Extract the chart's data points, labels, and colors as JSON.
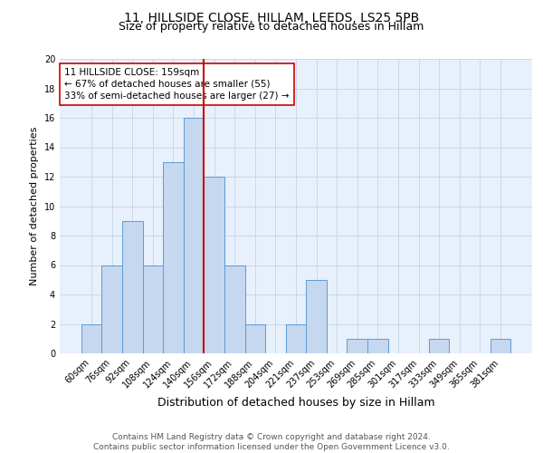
{
  "title1": "11, HILLSIDE CLOSE, HILLAM, LEEDS, LS25 5PB",
  "title2": "Size of property relative to detached houses in Hillam",
  "xlabel": "Distribution of detached houses by size in Hillam",
  "ylabel": "Number of detached properties",
  "categories": [
    "60sqm",
    "76sqm",
    "92sqm",
    "108sqm",
    "124sqm",
    "140sqm",
    "156sqm",
    "172sqm",
    "188sqm",
    "204sqm",
    "221sqm",
    "237sqm",
    "253sqm",
    "269sqm",
    "285sqm",
    "301sqm",
    "317sqm",
    "333sqm",
    "349sqm",
    "365sqm",
    "381sqm"
  ],
  "values": [
    2,
    6,
    9,
    6,
    13,
    16,
    12,
    6,
    2,
    0,
    2,
    5,
    0,
    1,
    1,
    0,
    0,
    1,
    0,
    0,
    1
  ],
  "bar_color": "#c5d8f0",
  "bar_edge_color": "#5b9bd5",
  "subject_line_color": "#cc0000",
  "annotation_text": "11 HILLSIDE CLOSE: 159sqm\n← 67% of detached houses are smaller (55)\n33% of semi-detached houses are larger (27) →",
  "annotation_box_color": "white",
  "annotation_box_edge_color": "#cc0000",
  "ylim": [
    0,
    20
  ],
  "yticks": [
    0,
    2,
    4,
    6,
    8,
    10,
    12,
    14,
    16,
    18,
    20
  ],
  "grid_color": "#c8d8ec",
  "background_color": "#e8f0fb",
  "footer_text": "Contains HM Land Registry data © Crown copyright and database right 2024.\nContains public sector information licensed under the Open Government Licence v3.0.",
  "title1_fontsize": 10,
  "title2_fontsize": 9,
  "xlabel_fontsize": 9,
  "ylabel_fontsize": 8,
  "tick_fontsize": 7,
  "annotation_fontsize": 7.5,
  "footer_fontsize": 6.5
}
